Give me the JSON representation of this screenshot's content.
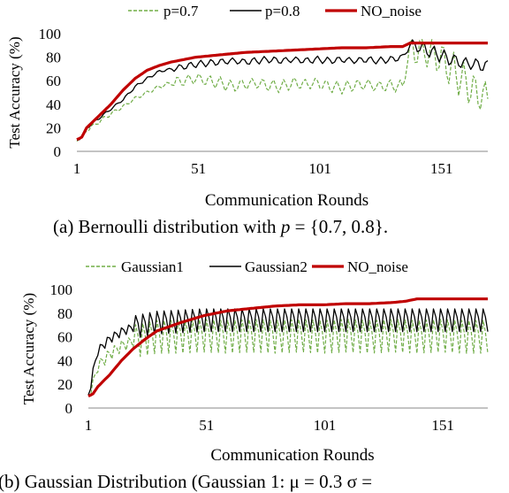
{
  "chart_data": [
    {
      "type": "line",
      "xlabel": "Communication Rounds",
      "ylabel": "Test Accuracy (%)",
      "xlim": [
        1,
        170
      ],
      "ylim": [
        0,
        100
      ],
      "xticks": [
        "1",
        "51",
        "101",
        "151"
      ],
      "yticks": [
        "0",
        "20",
        "40",
        "60",
        "80",
        "100"
      ],
      "legend_position": "top",
      "series": [
        {
          "name": "p=0.7",
          "color": "#70AD47",
          "style": "dashed",
          "x": [
            1,
            3,
            5,
            10,
            15,
            20,
            25,
            30,
            35,
            40,
            45,
            50,
            55,
            60,
            65,
            70,
            75,
            80,
            85,
            90,
            95,
            100,
            105,
            110,
            115,
            120,
            125,
            130,
            135,
            138,
            140,
            145,
            150,
            155,
            160,
            165,
            170
          ],
          "values": [
            10,
            12,
            18,
            25,
            32,
            38,
            45,
            50,
            55,
            58,
            60,
            62,
            60,
            58,
            55,
            57,
            58,
            56,
            55,
            58,
            57,
            58,
            55,
            54,
            56,
            57,
            55,
            56,
            55,
            88,
            87,
            85,
            80,
            70,
            60,
            50,
            45
          ]
        },
        {
          "name": "p=0.8",
          "color": "#000000",
          "style": "solid",
          "x": [
            1,
            3,
            5,
            10,
            15,
            20,
            25,
            30,
            35,
            40,
            45,
            50,
            55,
            60,
            65,
            70,
            75,
            80,
            85,
            90,
            95,
            100,
            105,
            110,
            115,
            120,
            125,
            130,
            135,
            138,
            140,
            145,
            150,
            155,
            160,
            165,
            170
          ],
          "values": [
            10,
            12,
            20,
            28,
            36,
            44,
            55,
            62,
            68,
            70,
            72,
            74,
            75,
            76,
            77,
            76,
            77,
            78,
            77,
            78,
            77,
            78,
            77,
            78,
            77,
            78,
            77,
            78,
            80,
            90,
            90,
            86,
            82,
            78,
            75,
            74,
            72
          ]
        },
        {
          "name": "NO_noise",
          "color": "#C00000",
          "style": "solid",
          "x": [
            1,
            3,
            5,
            10,
            15,
            20,
            25,
            30,
            35,
            40,
            45,
            50,
            60,
            70,
            80,
            90,
            100,
            110,
            120,
            130,
            135,
            138,
            140,
            150,
            160,
            170
          ],
          "values": [
            10,
            12,
            20,
            30,
            40,
            52,
            62,
            69,
            73,
            76,
            78,
            80,
            82,
            84,
            85,
            86,
            87,
            88,
            88,
            89,
            89,
            92,
            92,
            92,
            92,
            92
          ]
        }
      ]
    },
    {
      "type": "line",
      "xlabel": "Communication Rounds",
      "ylabel": "Test Accuracy (%)",
      "xlim": [
        1,
        170
      ],
      "ylim": [
        0,
        100
      ],
      "xticks": [
        "1",
        "51",
        "101",
        "151"
      ],
      "yticks": [
        "0",
        "20",
        "40",
        "60",
        "80",
        "100"
      ],
      "legend_position": "top",
      "series": [
        {
          "name": "Gaussian1",
          "color": "#70AD47",
          "style": "dashed",
          "x": [
            1,
            3,
            5,
            10,
            15,
            20,
            25,
            30,
            40,
            50,
            60,
            70,
            80,
            90,
            100,
            110,
            120,
            130,
            140,
            150,
            160,
            170
          ],
          "values": [
            10,
            20,
            35,
            45,
            52,
            56,
            58,
            60,
            60,
            61,
            60,
            61,
            60,
            61,
            60,
            61,
            60,
            61,
            60,
            61,
            60,
            60
          ]
        },
        {
          "name": "Gaussian2",
          "color": "#000000",
          "style": "solid",
          "x": [
            1,
            3,
            5,
            10,
            15,
            20,
            25,
            30,
            40,
            50,
            60,
            70,
            80,
            90,
            100,
            110,
            120,
            130,
            140,
            150,
            160,
            170
          ],
          "values": [
            10,
            30,
            48,
            58,
            64,
            68,
            70,
            72,
            73,
            74,
            74,
            74,
            74,
            74,
            74,
            74,
            74,
            74,
            74,
            74,
            74,
            74
          ]
        },
        {
          "name": "NO_noise",
          "color": "#C00000",
          "style": "solid",
          "x": [
            1,
            3,
            5,
            10,
            15,
            20,
            25,
            30,
            40,
            50,
            60,
            70,
            80,
            90,
            100,
            110,
            120,
            130,
            135,
            140,
            150,
            160,
            170
          ],
          "values": [
            10,
            12,
            18,
            28,
            40,
            50,
            58,
            65,
            72,
            78,
            82,
            84,
            86,
            87,
            87,
            88,
            88,
            89,
            90,
            92,
            92,
            92,
            92
          ]
        }
      ]
    }
  ],
  "captions": {
    "a_pre": "(a) Bernoulli distribution with ",
    "a_math": "p",
    "a_post": " = {0.7, 0.8}.",
    "b_text": "(b) Gaussian Distribution (Gaussian 1: μ = 0.3 σ ="
  }
}
